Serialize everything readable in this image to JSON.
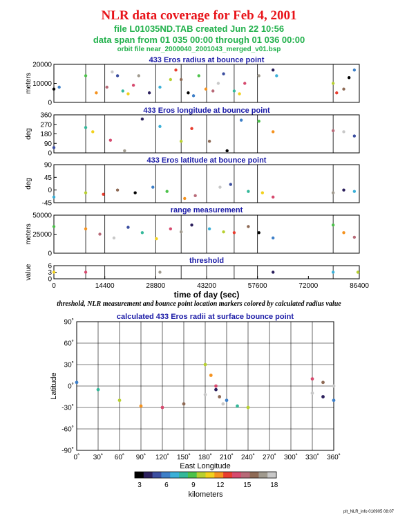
{
  "header": {
    "title": "NLR data coverage for Feb 4, 2001",
    "file_line": "file L01035ND.TAB created Jun 22 10:56",
    "span_line": "data span from 01 035 00:00 through 01 036 00:00",
    "orbit_line": "orbit file near_2000040_2001043_merged_v01.bsp"
  },
  "caption": "threshold, NLR measurement and bounce point location markers colored by calculated radius value",
  "footer": "plt_NLR_info 010905 08:07",
  "colors": {
    "title": "#e8141a",
    "subtitle": "#22b14c",
    "panel_title": "#1a1aa6",
    "colormap": [
      "#000000",
      "#2b1f5c",
      "#3b4ea0",
      "#3d7fc8",
      "#3bb0d8",
      "#34b89a",
      "#4cc24a",
      "#b8d030",
      "#f2d11c",
      "#f5921e",
      "#e83d2f",
      "#d64a6e",
      "#b86a78",
      "#8e6a55",
      "#a09a8e",
      "#c8c8c8"
    ]
  },
  "chart_data": [
    {
      "type": "scatter",
      "title": "433 Eros radius at bounce point",
      "ylabel": "meters",
      "xlim": [
        0,
        86400
      ],
      "ylim": [
        0,
        20000
      ],
      "yticks": [
        "0",
        "10000",
        "20000"
      ],
      "series": [
        {
          "x": [
            0,
            1500,
            9000,
            12000,
            15000,
            16500,
            18000,
            19500,
            21000,
            22500,
            24000,
            27000,
            30000,
            33000,
            34500,
            36000,
            38000,
            39500,
            41000,
            43000,
            45000,
            46500,
            48000,
            51000,
            52500,
            54000,
            58000,
            62000,
            63000,
            79000,
            80000,
            82000,
            83500,
            85000
          ],
          "y": [
            7000,
            8000,
            14000,
            5000,
            8000,
            16000,
            14000,
            6000,
            4500,
            9000,
            14000,
            5000,
            8000,
            12000,
            17000,
            12000,
            5000,
            3500,
            14000,
            7000,
            6000,
            10000,
            15000,
            6000,
            4500,
            10000,
            14000,
            17000,
            14000,
            10000,
            5000,
            7000,
            13000,
            17000
          ]
        }
      ]
    },
    {
      "type": "scatter",
      "title": "433 Eros longitude at bounce point",
      "ylabel": "deg",
      "xlim": [
        0,
        86400
      ],
      "ylim": [
        0,
        360
      ],
      "yticks": [
        "0",
        "90",
        "180",
        "270",
        "360"
      ],
      "series": [
        {
          "x": [
            0,
            9000,
            11000,
            16000,
            20000,
            25000,
            30000,
            36000,
            39000,
            44000,
            49000,
            53000,
            58000,
            62000,
            79000,
            82000,
            85000
          ],
          "y": [
            50,
            240,
            200,
            120,
            20,
            320,
            250,
            110,
            230,
            110,
            20,
            310,
            300,
            200,
            210,
            200,
            160
          ]
        }
      ]
    },
    {
      "type": "scatter",
      "title": "433 Eros latitude at bounce point",
      "ylabel": "deg",
      "xlim": [
        0,
        86400
      ],
      "ylim": [
        -45,
        90
      ],
      "yticks": [
        "-45",
        "0",
        "45",
        "90"
      ],
      "series": [
        {
          "x": [
            0,
            9000,
            14000,
            18000,
            23000,
            28000,
            32000,
            37000,
            40000,
            47000,
            50000,
            55000,
            59000,
            62000,
            79000,
            82000,
            85000
          ],
          "y": [
            -25,
            -10,
            -15,
            0,
            -10,
            10,
            -5,
            -30,
            -20,
            10,
            20,
            -5,
            -10,
            -25,
            -10,
            0,
            -5
          ]
        }
      ]
    },
    {
      "type": "scatter",
      "title": "range measurement",
      "ylabel": "meters",
      "xlim": [
        0,
        86400
      ],
      "ylim": [
        0,
        50000
      ],
      "yticks": [
        "0",
        "25000",
        "50000"
      ],
      "series": [
        {
          "x": [
            0,
            9000,
            13000,
            17000,
            21000,
            25000,
            29000,
            33000,
            36000,
            39000,
            44000,
            48000,
            51000,
            55000,
            58000,
            62000,
            79000,
            82000,
            85000
          ],
          "y": [
            35000,
            32000,
            25000,
            20000,
            34000,
            27000,
            19000,
            32000,
            28000,
            37000,
            32000,
            28000,
            27000,
            35000,
            27000,
            20000,
            37000,
            27000,
            21000
          ]
        }
      ]
    },
    {
      "type": "scatter",
      "title": "threshold",
      "ylabel": "value",
      "xlabel": "time of day (sec)",
      "xlim": [
        0,
        86400
      ],
      "ylim": [
        0,
        6
      ],
      "yticks": [
        "0",
        "3",
        "6"
      ],
      "xticks": [
        "0",
        "14400",
        "28800",
        "43200",
        "57600",
        "72000",
        "86400"
      ],
      "series": [
        {
          "x": [
            0,
            9000,
            30000,
            62000,
            79000,
            86000
          ],
          "y": [
            3,
            3,
            3,
            3,
            3,
            3
          ]
        }
      ]
    },
    {
      "type": "scatter",
      "title": "calculated 433 Eros radii at surface bounce point",
      "xlabel": "East Longitude",
      "ylabel": "Latitude",
      "xlim": [
        0,
        360
      ],
      "ylim": [
        -90,
        90
      ],
      "xticks": [
        "0˚",
        "30˚",
        "60˚",
        "90˚",
        "120˚",
        "150˚",
        "180˚",
        "210˚",
        "240˚",
        "270˚",
        "300˚",
        "330˚",
        "360˚"
      ],
      "yticks": [
        "-90˚",
        "-60˚",
        "-30˚",
        "0˚",
        "30˚",
        "60˚",
        "90˚"
      ],
      "series": [
        {
          "x": [
            0,
            30,
            60,
            90,
            120,
            150,
            180,
            195,
            210,
            225,
            240
          ],
          "y": [
            5,
            -5,
            -20,
            -28,
            -30,
            -25,
            -12,
            -5,
            -20,
            -28,
            -30
          ]
        },
        {
          "x": [
            180,
            188,
            195,
            200,
            205
          ],
          "y": [
            30,
            15,
            0,
            -15,
            -25
          ]
        },
        {
          "x": [
            330,
            345,
            360
          ],
          "y": [
            10,
            5,
            0
          ]
        },
        {
          "x": [
            330,
            345,
            360
          ],
          "y": [
            -10,
            -15,
            -20
          ]
        }
      ]
    }
  ],
  "colorbar": {
    "label": "kilometers",
    "ticks": [
      "3",
      "6",
      "9",
      "12",
      "15",
      "18"
    ]
  }
}
